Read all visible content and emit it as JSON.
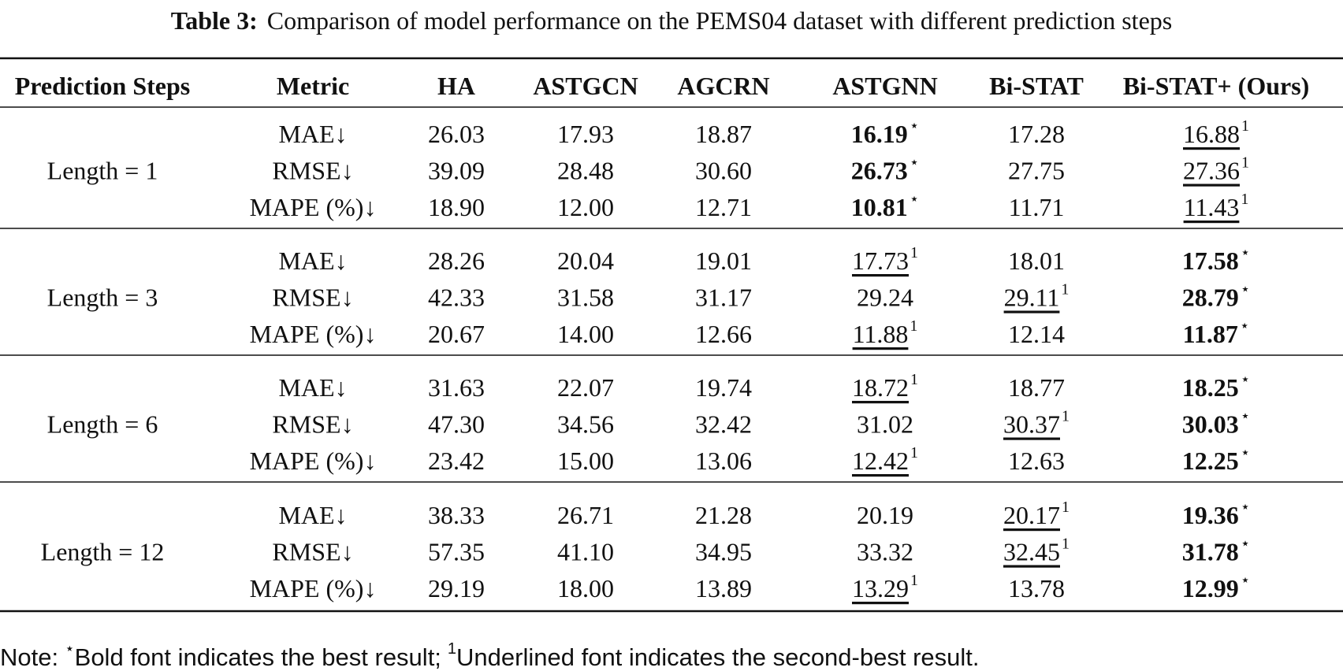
{
  "caption": {
    "label": "Table 3:",
    "text": "Comparison of model performance on the PEMS04 dataset with different prediction steps"
  },
  "table": {
    "headers": [
      "Prediction Steps",
      "Metric",
      "HA",
      "ASTGCN",
      "AGCRN",
      "ASTGNN",
      "Bi-STAT",
      "Bi-STAT+ (Ours)"
    ],
    "groups": [
      {
        "label": "Length = 1",
        "rows": [
          {
            "metric": "MAE↓",
            "cells": [
              {
                "text": "26.03"
              },
              {
                "text": "17.93"
              },
              {
                "text": "18.87"
              },
              {
                "text": "16.19",
                "style": "bold",
                "mark": "⋆"
              },
              {
                "text": "17.28"
              },
              {
                "text": "16.88",
                "style": "underline",
                "mark": "1"
              }
            ]
          },
          {
            "metric": "RMSE↓",
            "cells": [
              {
                "text": "39.09"
              },
              {
                "text": "28.48"
              },
              {
                "text": "30.60"
              },
              {
                "text": "26.73",
                "style": "bold",
                "mark": "⋆"
              },
              {
                "text": "27.75"
              },
              {
                "text": "27.36",
                "style": "underline",
                "mark": "1"
              }
            ]
          },
          {
            "metric": "MAPE (%)↓",
            "cells": [
              {
                "text": "18.90"
              },
              {
                "text": "12.00"
              },
              {
                "text": "12.71"
              },
              {
                "text": "10.81",
                "style": "bold",
                "mark": "⋆"
              },
              {
                "text": "11.71"
              },
              {
                "text": "11.43",
                "style": "underline",
                "mark": "1"
              }
            ]
          }
        ]
      },
      {
        "label": "Length = 3",
        "rows": [
          {
            "metric": "MAE↓",
            "cells": [
              {
                "text": "28.26"
              },
              {
                "text": "20.04"
              },
              {
                "text": "19.01"
              },
              {
                "text": "17.73",
                "style": "underline",
                "mark": "1"
              },
              {
                "text": "18.01"
              },
              {
                "text": "17.58",
                "style": "bold",
                "mark": "⋆"
              }
            ]
          },
          {
            "metric": "RMSE↓",
            "cells": [
              {
                "text": "42.33"
              },
              {
                "text": "31.58"
              },
              {
                "text": "31.17"
              },
              {
                "text": "29.24"
              },
              {
                "text": "29.11",
                "style": "underline",
                "mark": "1"
              },
              {
                "text": "28.79",
                "style": "bold",
                "mark": "⋆"
              }
            ]
          },
          {
            "metric": "MAPE (%)↓",
            "cells": [
              {
                "text": "20.67"
              },
              {
                "text": "14.00"
              },
              {
                "text": "12.66"
              },
              {
                "text": "11.88",
                "style": "underline",
                "mark": "1"
              },
              {
                "text": "12.14"
              },
              {
                "text": "11.87",
                "style": "bold",
                "mark": "⋆"
              }
            ]
          }
        ]
      },
      {
        "label": "Length = 6",
        "rows": [
          {
            "metric": "MAE↓",
            "cells": [
              {
                "text": "31.63"
              },
              {
                "text": "22.07"
              },
              {
                "text": "19.74"
              },
              {
                "text": "18.72",
                "style": "underline",
                "mark": "1"
              },
              {
                "text": "18.77"
              },
              {
                "text": "18.25",
                "style": "bold",
                "mark": "⋆"
              }
            ]
          },
          {
            "metric": "RMSE↓",
            "cells": [
              {
                "text": "47.30"
              },
              {
                "text": "34.56"
              },
              {
                "text": "32.42"
              },
              {
                "text": "31.02"
              },
              {
                "text": "30.37",
                "style": "underline",
                "mark": "1"
              },
              {
                "text": "30.03",
                "style": "bold",
                "mark": "⋆"
              }
            ]
          },
          {
            "metric": "MAPE (%)↓",
            "cells": [
              {
                "text": "23.42"
              },
              {
                "text": "15.00"
              },
              {
                "text": "13.06"
              },
              {
                "text": "12.42",
                "style": "underline",
                "mark": "1"
              },
              {
                "text": "12.63"
              },
              {
                "text": "12.25",
                "style": "bold",
                "mark": "⋆"
              }
            ]
          }
        ]
      },
      {
        "label": "Length = 12",
        "rows": [
          {
            "metric": "MAE↓",
            "cells": [
              {
                "text": "38.33"
              },
              {
                "text": "26.71"
              },
              {
                "text": "21.28"
              },
              {
                "text": "20.19"
              },
              {
                "text": "20.17",
                "style": "underline",
                "mark": "1"
              },
              {
                "text": "19.36",
                "style": "bold",
                "mark": "⋆"
              }
            ]
          },
          {
            "metric": "RMSE↓",
            "cells": [
              {
                "text": "57.35"
              },
              {
                "text": "41.10"
              },
              {
                "text": "34.95"
              },
              {
                "text": "33.32"
              },
              {
                "text": "32.45",
                "style": "underline",
                "mark": "1"
              },
              {
                "text": "31.78",
                "style": "bold",
                "mark": "⋆"
              }
            ]
          },
          {
            "metric": "MAPE (%)↓",
            "cells": [
              {
                "text": "29.19"
              },
              {
                "text": "18.00"
              },
              {
                "text": "13.89"
              },
              {
                "text": "13.29",
                "style": "underline",
                "mark": "1"
              },
              {
                "text": "13.78"
              },
              {
                "text": "12.99",
                "style": "bold",
                "mark": "⋆"
              }
            ]
          }
        ]
      }
    ]
  },
  "note": {
    "label": "Note:",
    "best_mark": "⋆",
    "best_text": "Bold font indicates the best result;",
    "second_mark": "1",
    "second_text": "Underlined font indicates the second-best result."
  }
}
